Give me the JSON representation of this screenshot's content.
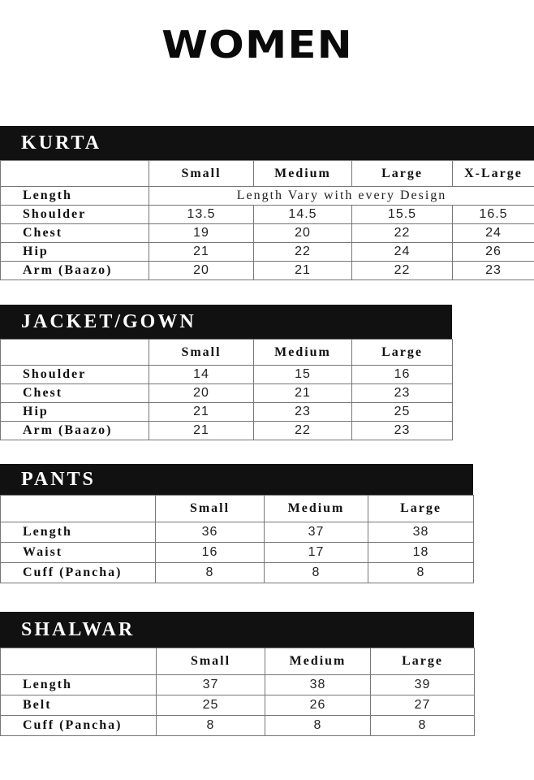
{
  "title": "WOMEN",
  "tables": [
    {
      "name": "KURTA",
      "columns": [
        "Small",
        "Medium",
        "Large",
        "X-Large"
      ],
      "rows": [
        {
          "label": "Length",
          "span_text": "Length Vary with every Design"
        },
        {
          "label": "Shoulder",
          "values": [
            "13.5",
            "14.5",
            "15.5",
            "16.5"
          ]
        },
        {
          "label": "Chest",
          "values": [
            "19",
            "20",
            "22",
            "24"
          ]
        },
        {
          "label": "Hip",
          "values": [
            "21",
            "22",
            "24",
            "26"
          ]
        },
        {
          "label": "Arm (Baazo)",
          "values": [
            "20",
            "21",
            "22",
            "23"
          ]
        }
      ]
    },
    {
      "name": "JACKET/GOWN",
      "columns": [
        "Small",
        "Medium",
        "Large"
      ],
      "rows": [
        {
          "label": "Shoulder",
          "values": [
            "14",
            "15",
            "16"
          ]
        },
        {
          "label": "Chest",
          "values": [
            "20",
            "21",
            "23"
          ]
        },
        {
          "label": "Hip",
          "values": [
            "21",
            "23",
            "25"
          ]
        },
        {
          "label": "Arm (Baazo)",
          "values": [
            "21",
            "22",
            "23"
          ]
        }
      ]
    },
    {
      "name": "PANTS",
      "columns": [
        "Small",
        "Medium",
        "Large"
      ],
      "rows": [
        {
          "label": "Length",
          "values": [
            "36",
            "37",
            "38"
          ]
        },
        {
          "label": "Waist",
          "values": [
            "16",
            "17",
            "18"
          ]
        },
        {
          "label": "Cuff (Pancha)",
          "values": [
            "8",
            "8",
            "8"
          ]
        }
      ]
    },
    {
      "name": "SHALWAR",
      "columns": [
        "Small",
        "Medium",
        "Large"
      ],
      "rows": [
        {
          "label": "Length",
          "values": [
            "37",
            "38",
            "39"
          ]
        },
        {
          "label": "Belt",
          "values": [
            "25",
            "26",
            "27"
          ]
        },
        {
          "label": "Cuff (Pancha)",
          "values": [
            "8",
            "8",
            "8"
          ]
        }
      ]
    }
  ]
}
